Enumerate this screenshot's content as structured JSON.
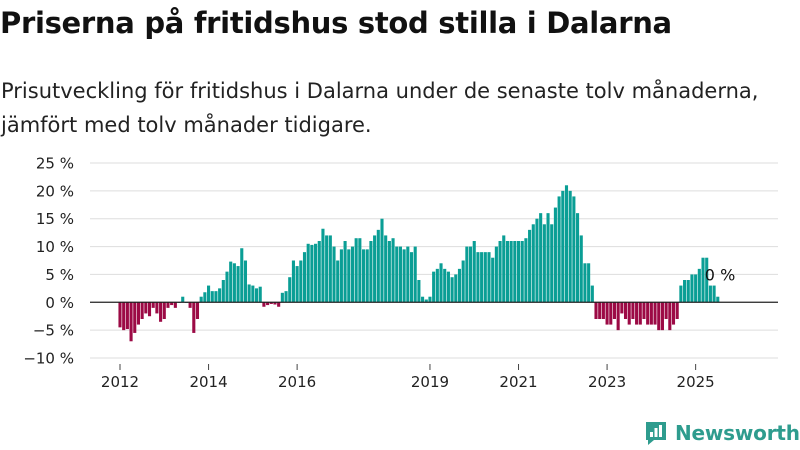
{
  "header": {
    "title": "Priserna på fritidshus stod stilla i Dalarna",
    "subtitle_lines": [
      "Prisutveckling för fritidshus i Dalarna under de senaste tolv månaderna,",
      "jämfört med tolv månader tidigare."
    ]
  },
  "chart_data": {
    "type": "bar",
    "title": "Priserna på fritidshus stod stilla i Dalarna",
    "subtitle": "Prisutveckling för fritidshus i Dalarna under de senaste tolv månaderna, jämfört med tolv månader tidigare.",
    "xlabel": "",
    "ylabel": "",
    "unit": "%",
    "ylim": [
      -10,
      25
    ],
    "y_ticks": [
      -10,
      -5,
      0,
      5,
      10,
      15,
      20,
      25
    ],
    "y_tick_labels": [
      "−10 %",
      "−5 %",
      "0 %",
      "5 %",
      "10 %",
      "15 %",
      "20 %",
      "25 %"
    ],
    "x_ticks": [
      "2012",
      "2014",
      "2016",
      "2019",
      "2021",
      "2023",
      "2025"
    ],
    "grid": true,
    "start_month": "2012-01",
    "positive_color": "#0a9e95",
    "negative_color": "#9c0a45",
    "annotation": "0 %",
    "values": [
      -4.5,
      -5,
      -4.8,
      -7,
      -5.5,
      -4,
      -3,
      -2,
      -2.5,
      -1,
      -2,
      -3.5,
      -3,
      -1,
      -0.5,
      -1,
      0,
      1,
      0,
      -1,
      -5.5,
      -3,
      1,
      1.8,
      3,
      2,
      2,
      2.5,
      4,
      5.5,
      7.3,
      7,
      6.5,
      9.7,
      7.5,
      3.2,
      3,
      2.5,
      2.8,
      -0.8,
      -0.5,
      -0.3,
      -0.4,
      -0.8,
      1.7,
      2,
      4.5,
      7.5,
      6.5,
      7.5,
      9,
      10.5,
      10.3,
      10.5,
      11,
      13.2,
      12,
      12,
      10,
      7.5,
      9.5,
      11,
      9.5,
      10,
      11.5,
      11.5,
      9.5,
      9.5,
      11,
      12,
      13,
      15,
      12,
      11,
      11.5,
      10,
      10,
      9.5,
      10,
      9,
      10,
      4,
      1,
      0.5,
      1,
      5.5,
      6,
      7,
      6,
      5.5,
      4.5,
      5,
      6,
      7.5,
      10,
      10,
      11,
      9,
      9,
      9,
      9,
      8,
      10,
      11,
      12,
      11,
      11,
      11,
      11,
      11,
      11.5,
      13,
      14,
      15,
      16,
      14,
      16,
      14,
      17,
      19,
      20,
      21,
      20,
      19,
      16,
      12,
      7,
      7,
      3,
      -3,
      -3,
      -3,
      -4,
      -4,
      -3,
      -5,
      -2,
      -3,
      -4,
      -3,
      -4,
      -4,
      -3,
      -4,
      -4,
      -4,
      -5,
      -5,
      -3,
      -5,
      -4,
      -3,
      3,
      4,
      4,
      5,
      5,
      6,
      8,
      8,
      3,
      3,
      1
    ]
  },
  "logo": {
    "name": "Newsworthy",
    "icon": "chart-logo-icon"
  }
}
